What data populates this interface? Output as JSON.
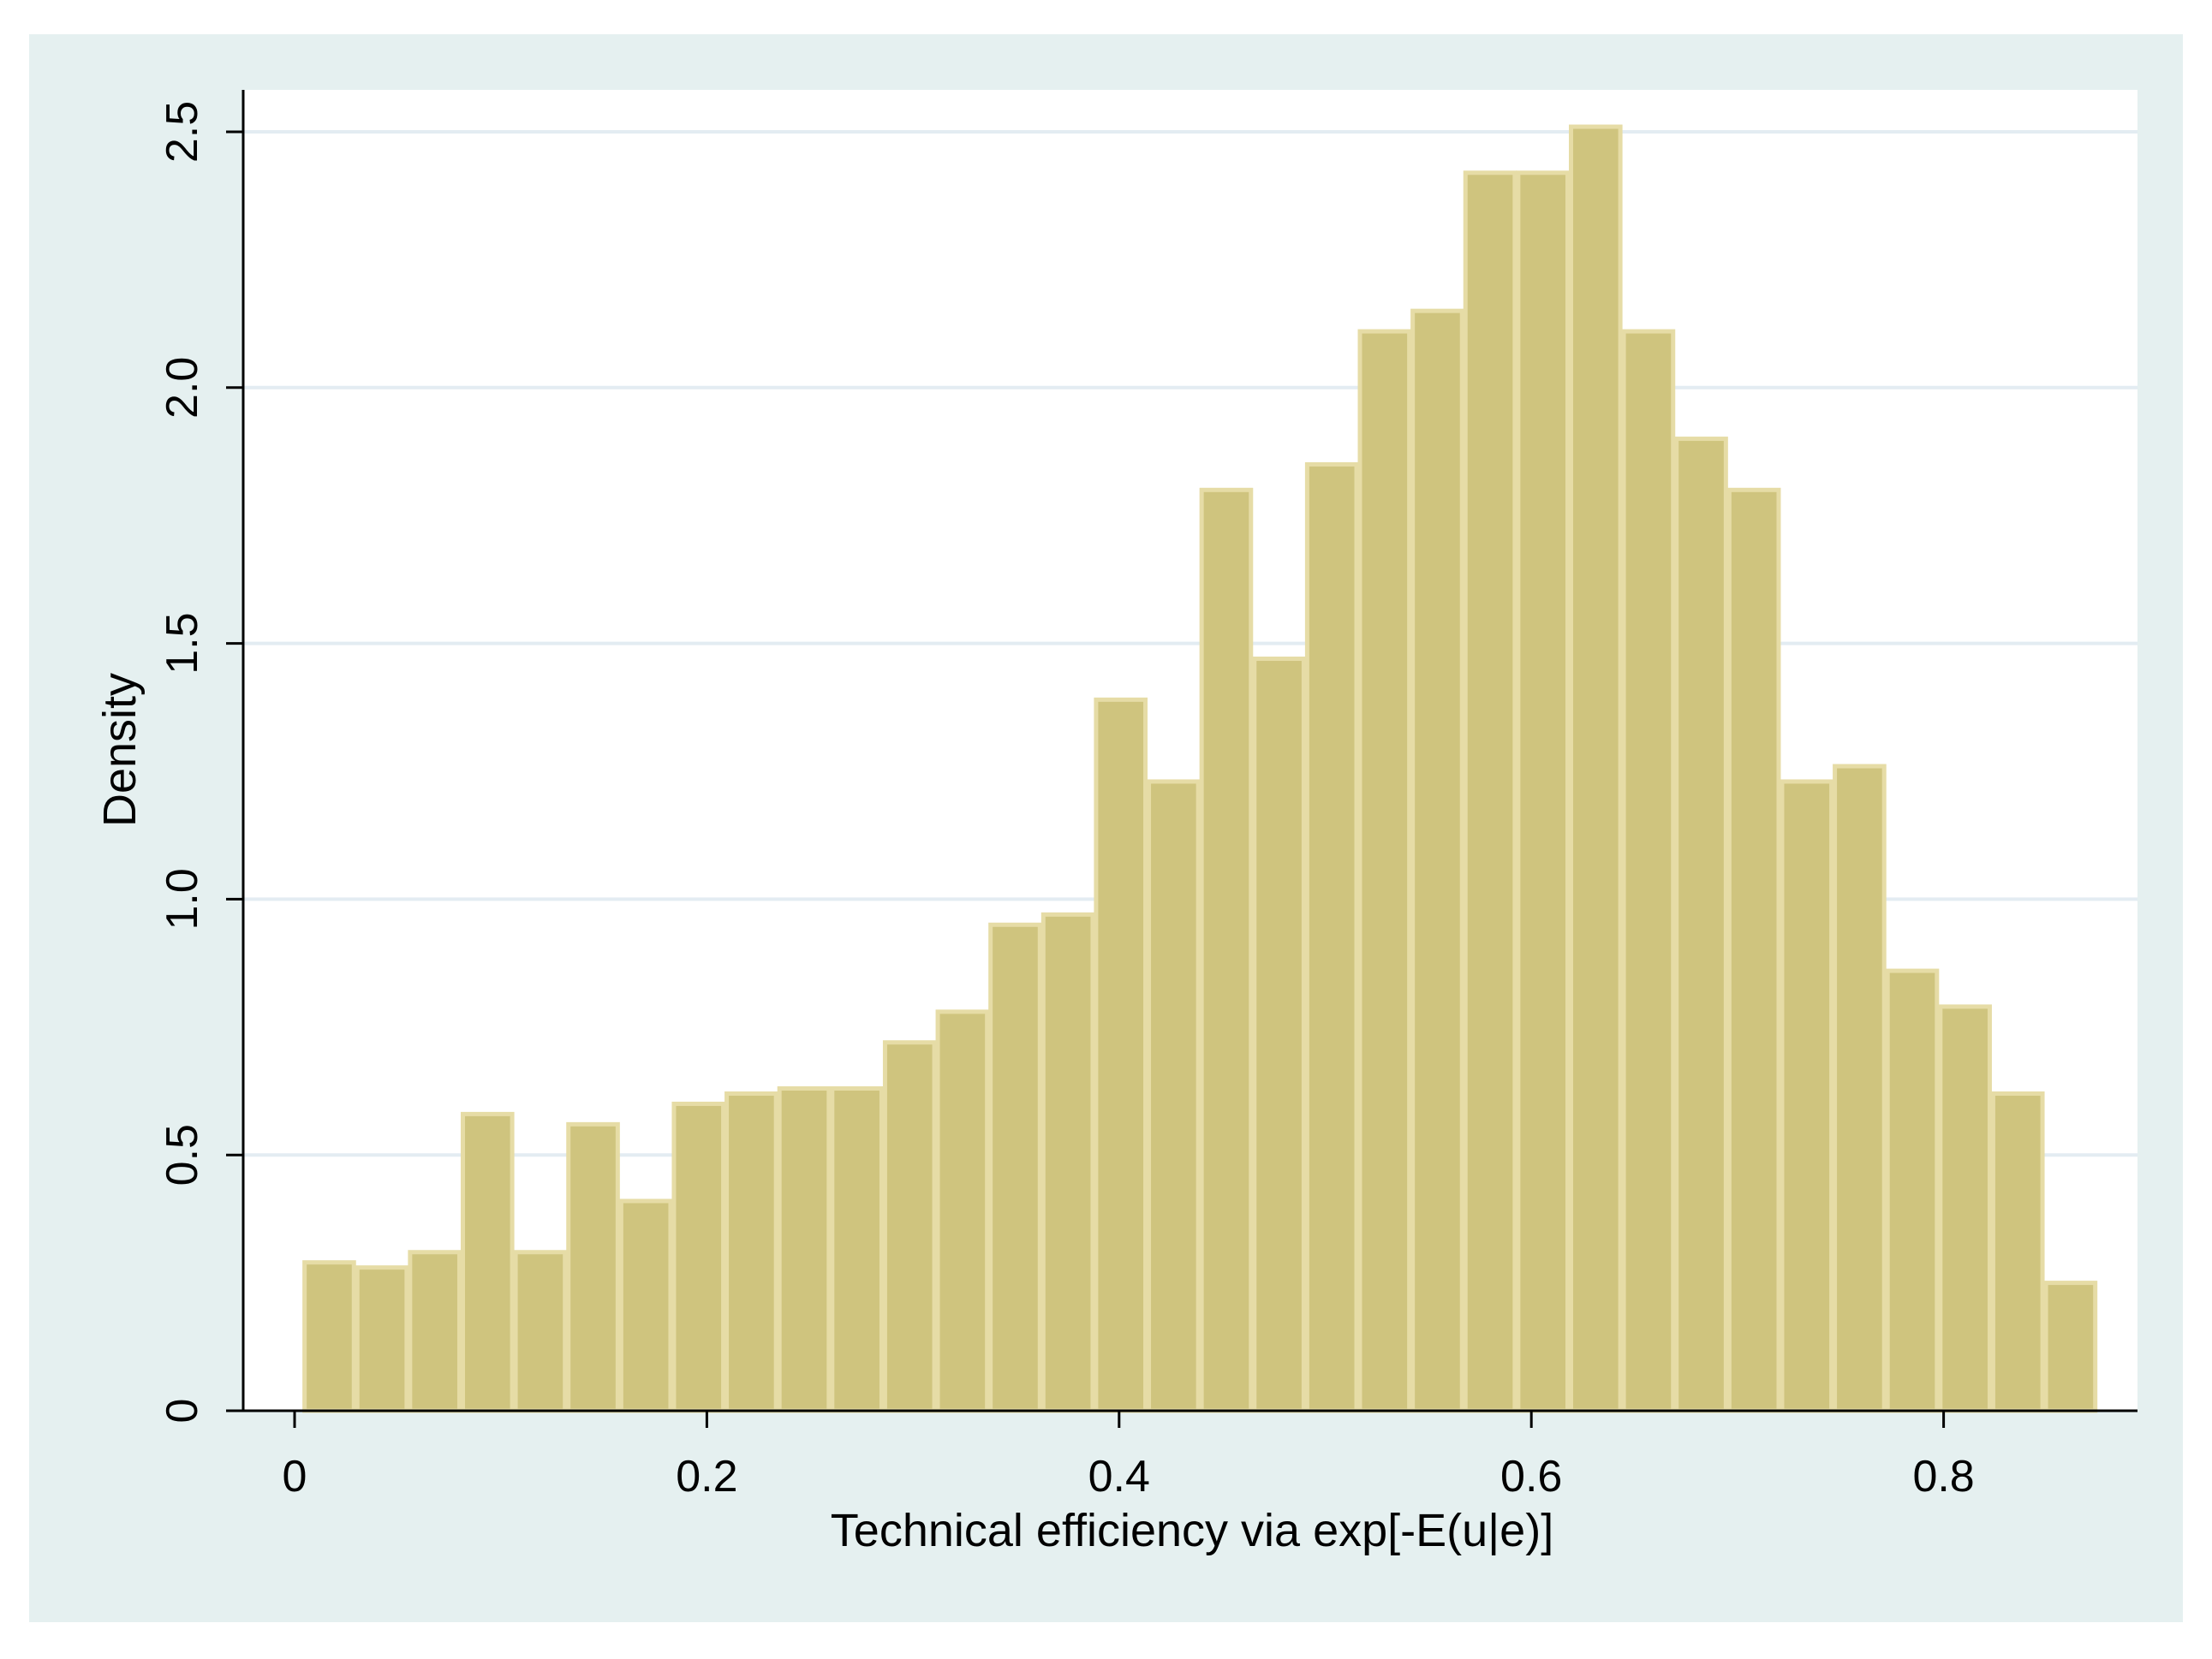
{
  "chart_data": {
    "type": "bar",
    "title": "",
    "xlabel": "Technical efficiency via exp[-E(u|e)]",
    "ylabel": "Density",
    "xlim": [
      0,
      0.88
    ],
    "ylim": [
      0,
      2.5
    ],
    "x_ticks": [
      {
        "value": 0,
        "label": "0"
      },
      {
        "value": 0.2,
        "label": "0.2"
      },
      {
        "value": 0.4,
        "label": "0.4"
      },
      {
        "value": 0.6,
        "label": "0.6"
      },
      {
        "value": 0.8,
        "label": "0.8"
      }
    ],
    "y_ticks": [
      {
        "value": 0,
        "label": "0"
      },
      {
        "value": 0.5,
        "label": "0.5"
      },
      {
        "value": 1,
        "label": "1.0"
      },
      {
        "value": 1.5,
        "label": "1.5"
      },
      {
        "value": 2,
        "label": "2.0"
      },
      {
        "value": 2.5,
        "label": "2.5"
      }
    ],
    "grid": true,
    "legend": "none",
    "bin_start": 0.004,
    "bin_width": 0.0256,
    "values": [
      0.29,
      0.28,
      0.31,
      0.58,
      0.31,
      0.56,
      0.41,
      0.6,
      0.62,
      0.63,
      0.63,
      0.72,
      0.78,
      0.95,
      0.97,
      1.39,
      1.23,
      1.8,
      1.47,
      1.85,
      2.11,
      2.15,
      2.42,
      2.42,
      2.51,
      2.11,
      1.9,
      1.8,
      1.23,
      1.26,
      0.86,
      0.79,
      0.62,
      0.25
    ],
    "colors": {
      "outer_background": "#e5f0f0",
      "plot_background": "#ffffff",
      "bar_fill": "#cfc47e",
      "bar_edge": "#e6dca6",
      "grid": "#e3ecf2",
      "axis": "#000000"
    }
  }
}
